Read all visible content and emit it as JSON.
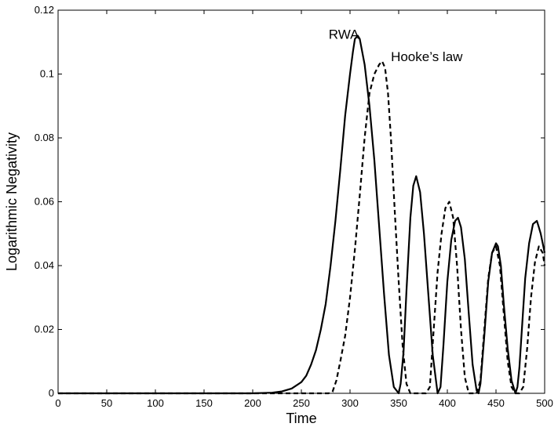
{
  "chart_data": {
    "type": "line",
    "title": "",
    "xlabel": "Time",
    "ylabel": "Logarithmic Negativity",
    "xlim": [
      0,
      500
    ],
    "ylim": [
      0,
      0.12
    ],
    "grid": false,
    "x_ticks": [
      "0",
      "50",
      "100",
      "150",
      "200",
      "250",
      "300",
      "350",
      "400",
      "450",
      "500"
    ],
    "y_ticks": [
      "0",
      "0.02",
      "0.04",
      "0.06",
      "0.08",
      "0.1",
      "0.12"
    ],
    "annotations": [
      {
        "text": "RWA",
        "x": 278,
        "y": 0.111,
        "target": "rwa"
      },
      {
        "text": "Hooke’s law",
        "x": 342,
        "y": 0.104,
        "target": "hooke"
      }
    ],
    "series": [
      {
        "id": "rwa",
        "style": "solid",
        "color": "#000000",
        "x": [
          0,
          50,
          100,
          150,
          200,
          220,
          230,
          240,
          250,
          255,
          260,
          265,
          270,
          275,
          280,
          285,
          290,
          295,
          300,
          303,
          305,
          308,
          310,
          315,
          320,
          325,
          330,
          335,
          340,
          345,
          350,
          352,
          355,
          358,
          362,
          365,
          368,
          372,
          376,
          380,
          385,
          390,
          393,
          396,
          400,
          404,
          408,
          411,
          414,
          418,
          422,
          426,
          430,
          432,
          434,
          438,
          442,
          446,
          450,
          452,
          455,
          458,
          462,
          466,
          470,
          472,
          474,
          477,
          480,
          484,
          488,
          492,
          494,
          496,
          500
        ],
        "y": [
          0,
          0,
          0,
          0,
          0,
          0.0002,
          0.0006,
          0.0015,
          0.0035,
          0.0055,
          0.009,
          0.0135,
          0.02,
          0.028,
          0.04,
          0.054,
          0.07,
          0.087,
          0.1,
          0.107,
          0.111,
          0.112,
          0.111,
          0.103,
          0.09,
          0.073,
          0.052,
          0.031,
          0.012,
          0.002,
          0,
          0.003,
          0.013,
          0.032,
          0.055,
          0.065,
          0.068,
          0.063,
          0.05,
          0.033,
          0.012,
          0,
          0.002,
          0.015,
          0.035,
          0.048,
          0.054,
          0.055,
          0.052,
          0.042,
          0.025,
          0.009,
          0.001,
          0,
          0.003,
          0.018,
          0.035,
          0.044,
          0.047,
          0.046,
          0.04,
          0.028,
          0.014,
          0.004,
          0,
          0.002,
          0.008,
          0.022,
          0.036,
          0.047,
          0.053,
          0.054,
          0.052,
          0.05,
          0.044
        ]
      },
      {
        "id": "hooke",
        "style": "dashed",
        "color": "#000000",
        "x": [
          0,
          100,
          200,
          250,
          270,
          278,
          282,
          286,
          290,
          295,
          300,
          305,
          310,
          315,
          320,
          325,
          330,
          333,
          336,
          339,
          342,
          346,
          350,
          354,
          358,
          362,
          366,
          370,
          374,
          378,
          382,
          386,
          390,
          394,
          398,
          402,
          406,
          410,
          414,
          418,
          422,
          426,
          430,
          434,
          438,
          442,
          446,
          450,
          454,
          458,
          462,
          466,
          470,
          474,
          478,
          482,
          486,
          490,
          494,
          498,
          500
        ],
        "y": [
          0,
          0,
          0,
          0,
          0,
          0,
          0.0005,
          0.004,
          0.01,
          0.018,
          0.03,
          0.045,
          0.062,
          0.08,
          0.094,
          0.1,
          0.103,
          0.104,
          0.102,
          0.094,
          0.08,
          0.057,
          0.035,
          0.015,
          0.003,
          0,
          0,
          0,
          0,
          0,
          0.002,
          0.02,
          0.038,
          0.05,
          0.058,
          0.06,
          0.055,
          0.04,
          0.02,
          0.005,
          0,
          0,
          0,
          0.004,
          0.02,
          0.036,
          0.044,
          0.046,
          0.04,
          0.025,
          0.01,
          0.002,
          0,
          0,
          0.002,
          0.014,
          0.03,
          0.041,
          0.046,
          0.044,
          0.04
        ]
      }
    ]
  }
}
